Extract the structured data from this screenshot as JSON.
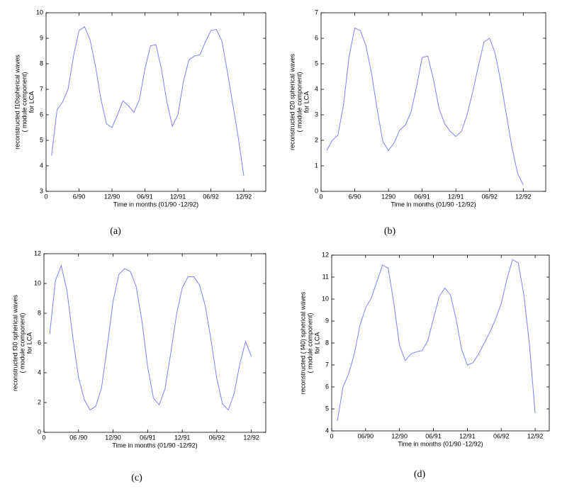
{
  "chart_data": [
    {
      "type": "line",
      "caption": "(a)",
      "ylabel": [
        "reconstructed f10spherical waves",
        "( module component)",
        "for LCA"
      ],
      "xlabel": "Time in months (01/90 -12/92)",
      "xlim": [
        0,
        40
      ],
      "ylim": [
        3,
        10
      ],
      "xticks": [
        0,
        {
          "value": 6,
          "label": "6/90"
        },
        {
          "value": 12,
          "label": "12/90"
        },
        {
          "value": 18,
          "label": "06/91"
        },
        {
          "value": 24,
          "label": "12/91"
        },
        {
          "value": 30,
          "label": "06/92"
        },
        {
          "value": 36,
          "label": "12/92"
        }
      ],
      "yticks": [
        3,
        4,
        5,
        6,
        7,
        8,
        9,
        10
      ],
      "x": [
        1,
        2,
        3,
        4,
        5,
        6,
        7,
        8,
        9,
        10,
        11,
        12,
        13,
        14,
        15,
        16,
        17,
        18,
        19,
        20,
        21,
        22,
        23,
        24,
        25,
        26,
        27,
        28,
        29,
        30,
        31,
        32,
        33,
        34,
        35,
        36
      ],
      "color": "#8080ff",
      "values": [
        4.4,
        6.2,
        6.5,
        7.0,
        8.3,
        9.3,
        9.45,
        8.95,
        7.9,
        6.6,
        5.65,
        5.5,
        6.0,
        6.55,
        6.35,
        6.1,
        6.6,
        7.8,
        8.7,
        8.75,
        7.8,
        6.5,
        5.55,
        6.0,
        7.3,
        8.15,
        8.3,
        8.35,
        8.85,
        9.3,
        9.35,
        8.9,
        7.7,
        6.4,
        5.1,
        3.6
      ]
    },
    {
      "type": "line",
      "caption": "(b)",
      "ylabel": [
        "reconstructed f20 spherical waves",
        "( module component)",
        "for LCA"
      ],
      "xlabel": "Time in months (01/90 -12/92)",
      "xlim": [
        0,
        40
      ],
      "ylim": [
        0,
        7
      ],
      "xticks": [
        0,
        {
          "value": 6,
          "label": "6/90"
        },
        {
          "value": 12,
          "label": "1290"
        },
        {
          "value": 18,
          "label": "06/91"
        },
        {
          "value": 24,
          "label": "12/91"
        },
        {
          "value": 30,
          "label": "06/92"
        },
        {
          "value": 36,
          "label": "12/92"
        }
      ],
      "yticks": [
        0,
        1,
        2,
        3,
        4,
        5,
        6,
        7
      ],
      "x": [
        1,
        2,
        3,
        4,
        5,
        6,
        7,
        8,
        9,
        10,
        11,
        12,
        13,
        14,
        15,
        16,
        17,
        18,
        19,
        20,
        21,
        22,
        23,
        24,
        25,
        26,
        27,
        28,
        29,
        30,
        31,
        32,
        33,
        34,
        35,
        36
      ],
      "color": "#8080ff",
      "values": [
        1.6,
        2.0,
        2.2,
        3.4,
        5.3,
        6.4,
        6.3,
        5.7,
        4.6,
        3.2,
        1.95,
        1.6,
        1.9,
        2.4,
        2.6,
        3.1,
        4.1,
        5.25,
        5.3,
        4.4,
        3.25,
        2.65,
        2.35,
        2.15,
        2.35,
        3.0,
        3.9,
        4.9,
        5.85,
        6.0,
        5.4,
        4.3,
        3.0,
        1.7,
        0.7,
        0.25
      ]
    },
    {
      "type": "line",
      "caption": "(c)",
      "ylabel": [
        "reconstructed f30 spherical waves",
        "( module component)",
        "for LCA"
      ],
      "xlabel": "Time in months (01/90 -12/92)",
      "xlim": [
        0,
        38.5
      ],
      "ylim": [
        0,
        12
      ],
      "xticks": [
        0,
        {
          "value": 6,
          "label": "06 /90"
        },
        {
          "value": 12,
          "label": "12/90"
        },
        {
          "value": 18,
          "label": "06/91"
        },
        {
          "value": 24,
          "label": "12/91"
        },
        {
          "value": 30,
          "label": "06/92"
        },
        {
          "value": 36,
          "label": "12/92"
        }
      ],
      "yticks": [
        0,
        2,
        4,
        6,
        8,
        10,
        12
      ],
      "x": [
        1,
        2,
        3,
        4,
        5,
        6,
        7,
        8,
        9,
        10,
        11,
        12,
        13,
        14,
        15,
        16,
        17,
        18,
        19,
        20,
        21,
        22,
        23,
        24,
        25,
        26,
        27,
        28,
        29,
        30,
        31,
        32,
        33,
        34,
        35,
        36
      ],
      "color": "#8080ff",
      "values": [
        6.6,
        10.2,
        11.2,
        9.5,
        6.4,
        3.7,
        2.2,
        1.5,
        1.75,
        3.0,
        5.8,
        8.8,
        10.6,
        11.0,
        10.8,
        9.8,
        7.5,
        4.4,
        2.3,
        1.85,
        2.9,
        5.3,
        7.9,
        9.7,
        10.45,
        10.45,
        9.9,
        8.5,
        6.2,
        3.6,
        1.9,
        1.5,
        2.6,
        4.6,
        6.1,
        5.1
      ]
    },
    {
      "type": "line",
      "caption": "(d)",
      "ylabel": [
        "reconstructed ( f40) spherical waves",
        "( module component)",
        "for LCA"
      ],
      "xlabel": "Time in months (01/90 -12/92)",
      "xlim": [
        0,
        38.5
      ],
      "ylim": [
        4,
        12
      ],
      "xticks": [
        0,
        {
          "value": 6,
          "label": "06/90"
        },
        {
          "value": 12,
          "label": "12/90"
        },
        {
          "value": 18,
          "label": "06/91"
        },
        {
          "value": 24,
          "label": "12/91"
        },
        {
          "value": 30,
          "label": "06/92"
        },
        {
          "value": 36,
          "label": "12/92"
        }
      ],
      "yticks": [
        4,
        5,
        6,
        7,
        8,
        9,
        10,
        11,
        12
      ],
      "x": [
        1,
        2,
        3,
        4,
        5,
        6,
        7,
        8,
        9,
        10,
        11,
        12,
        13,
        14,
        15,
        16,
        17,
        18,
        19,
        20,
        21,
        22,
        23,
        24,
        25,
        26,
        27,
        28,
        29,
        30,
        31,
        32,
        33,
        34,
        35,
        36
      ],
      "color": "#8080ff",
      "values": [
        4.45,
        6.0,
        6.6,
        7.5,
        8.8,
        9.6,
        10.05,
        10.8,
        11.55,
        11.4,
        9.8,
        7.9,
        7.2,
        7.5,
        7.6,
        7.65,
        8.1,
        9.1,
        10.1,
        10.5,
        10.2,
        9.1,
        7.7,
        7.0,
        7.1,
        7.5,
        8.0,
        8.5,
        9.1,
        9.8,
        10.9,
        11.8,
        11.65,
        10.2,
        7.9,
        4.8
      ]
    }
  ]
}
